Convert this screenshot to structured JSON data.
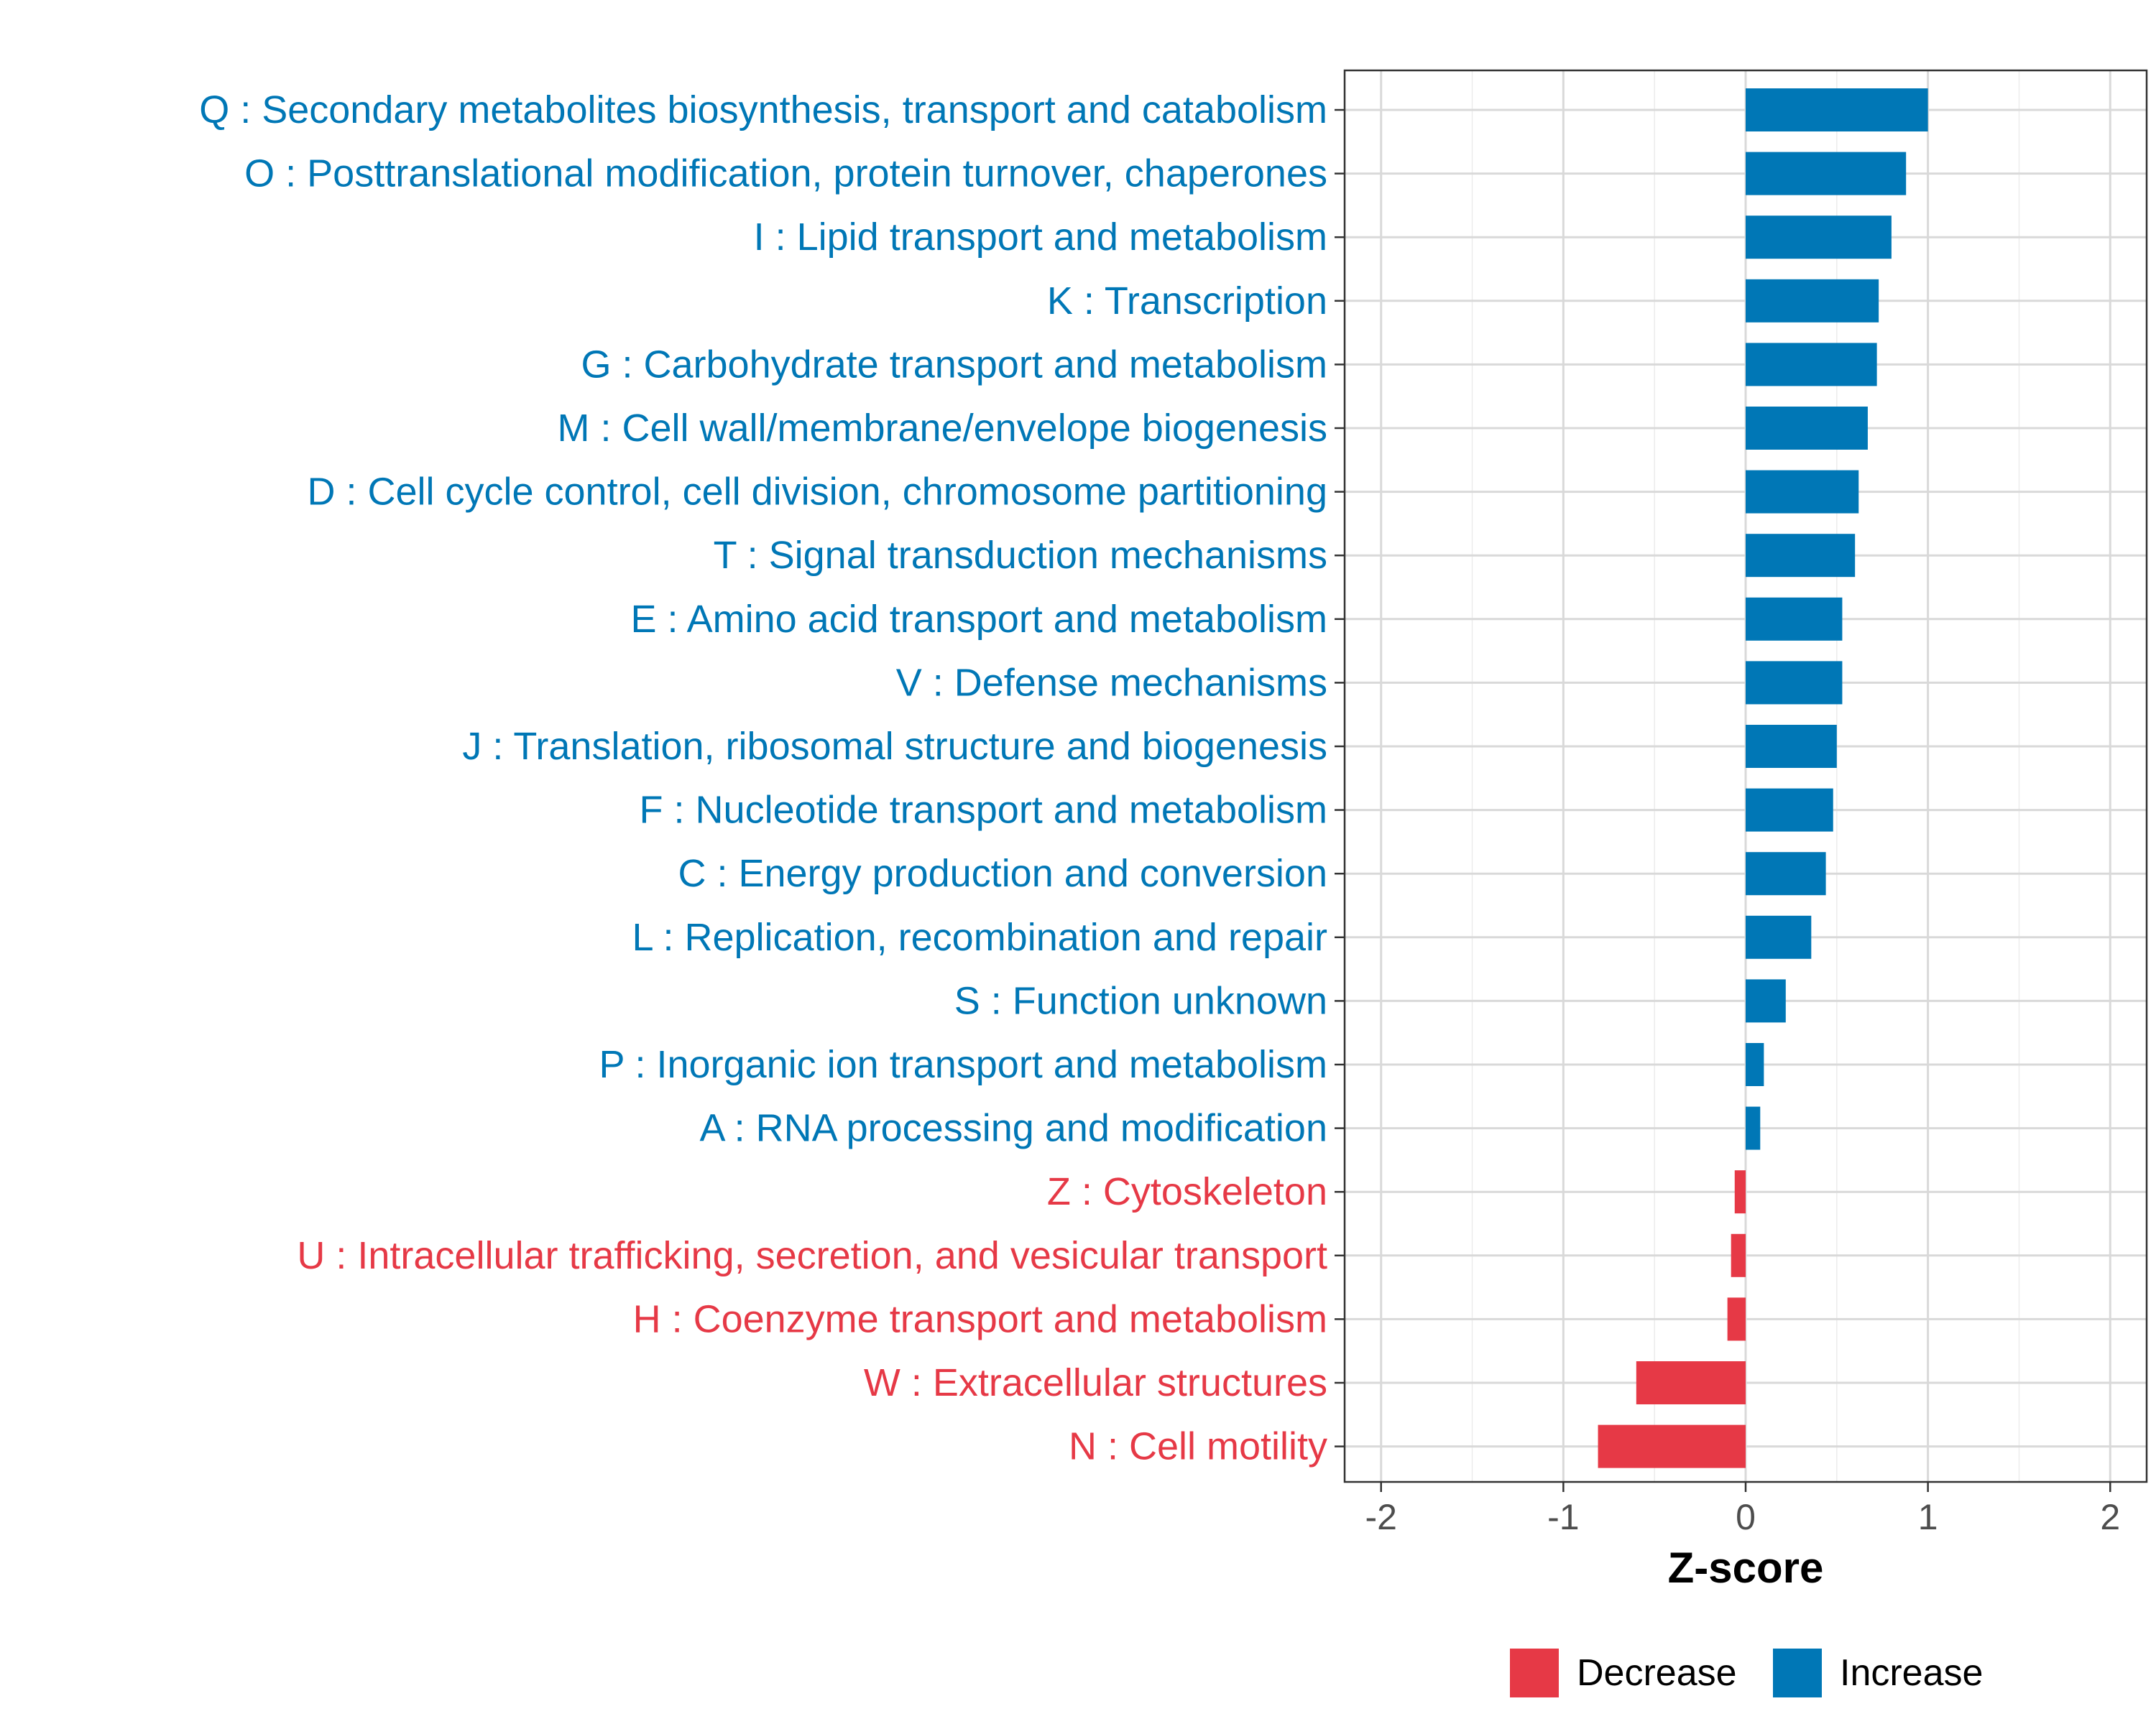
{
  "chart_data": {
    "type": "bar",
    "orientation": "horizontal",
    "xlabel": "Z-score",
    "xlim": [
      -2.2,
      2.2
    ],
    "xticks": [
      -2,
      -1,
      0,
      1,
      2
    ],
    "xtick_labels": [
      "-2",
      "-1",
      "0",
      "1",
      "2"
    ],
    "grid": true,
    "legend_position": "bottom-right",
    "colors": {
      "Decrease": "#e63946",
      "Increase": "#0077b6"
    },
    "legend": [
      {
        "key": "Decrease",
        "label": "Decrease"
      },
      {
        "key": "Increase",
        "label": "Increase"
      }
    ],
    "categories": [
      "Q : Secondary metabolites biosynthesis, transport and catabolism",
      "O : Posttranslational modification, protein turnover, chaperones",
      "I : Lipid transport and metabolism",
      "K : Transcription",
      "G : Carbohydrate transport and metabolism",
      "M : Cell wall/membrane/envelope biogenesis",
      "D : Cell cycle control, cell division, chromosome partitioning",
      "T : Signal transduction mechanisms",
      "E : Amino acid transport and metabolism",
      "V : Defense mechanisms",
      "J : Translation, ribosomal structure and biogenesis",
      "F : Nucleotide transport and metabolism",
      "C : Energy production and conversion",
      "L : Replication, recombination and repair",
      "S : Function unknown",
      "P : Inorganic ion transport and metabolism",
      "A : RNA processing and modification",
      "Z : Cytoskeleton",
      "U : Intracellular trafficking, secretion, and vesicular transport",
      "H : Coenzyme transport and metabolism",
      "W : Extracellular structures",
      "N : Cell motility"
    ],
    "values": [
      1.0,
      0.88,
      0.8,
      0.73,
      0.72,
      0.67,
      0.62,
      0.6,
      0.53,
      0.53,
      0.5,
      0.48,
      0.44,
      0.36,
      0.22,
      0.1,
      0.08,
      -0.06,
      -0.08,
      -0.1,
      -0.6,
      -0.81
    ],
    "groups": [
      "Increase",
      "Increase",
      "Increase",
      "Increase",
      "Increase",
      "Increase",
      "Increase",
      "Increase",
      "Increase",
      "Increase",
      "Increase",
      "Increase",
      "Increase",
      "Increase",
      "Increase",
      "Increase",
      "Increase",
      "Decrease",
      "Decrease",
      "Decrease",
      "Decrease",
      "Decrease"
    ]
  }
}
